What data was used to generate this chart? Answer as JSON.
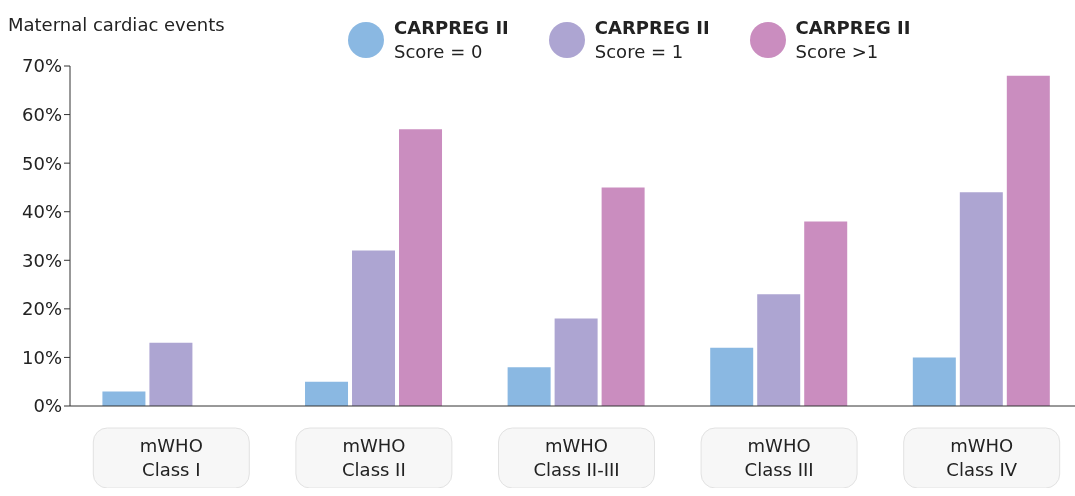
{
  "chart_data": {
    "type": "bar",
    "ylabel": "Maternal cardiac events",
    "categories": [
      "mWHO\nClass I",
      "mWHO\nClass II",
      "mWHO\nClass II-III",
      "mWHO\nClass III",
      "mWHO\nClass IV"
    ],
    "series": [
      {
        "name": "CARPREG II\nScore = 0",
        "color": "#8ab8e2",
        "values": [
          3,
          5,
          8,
          12,
          10
        ]
      },
      {
        "name": "CARPREG II\nScore = 1",
        "color": "#ada5d2",
        "values": [
          13,
          32,
          18,
          23,
          44
        ]
      },
      {
        "name": "CARPREG II\nScore >1",
        "color": "#ca8dbf",
        "values": [
          null,
          57,
          45,
          38,
          68
        ]
      }
    ],
    "ylim": [
      0,
      70
    ],
    "yticks": [
      {
        "value": 0,
        "label": "0%"
      },
      {
        "value": 10,
        "label": "10%"
      },
      {
        "value": 20,
        "label": "20%"
      },
      {
        "value": 30,
        "label": "30%"
      },
      {
        "value": 40,
        "label": "40%"
      },
      {
        "value": 50,
        "label": "50%"
      },
      {
        "value": 60,
        "label": "60%"
      },
      {
        "value": 70,
        "label": "70%"
      }
    ],
    "grid": false,
    "legend": "top"
  }
}
